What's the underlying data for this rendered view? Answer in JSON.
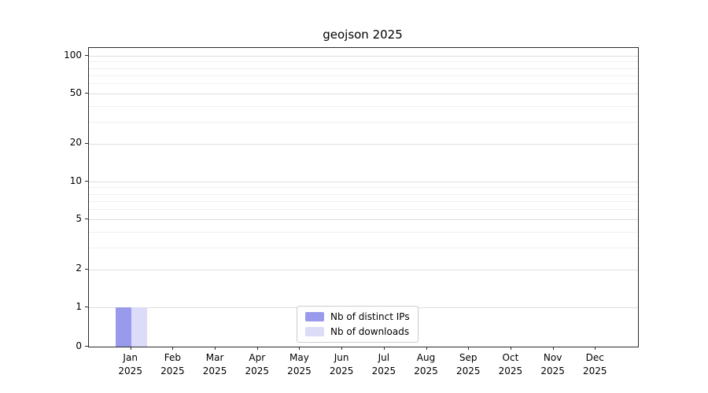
{
  "title": "geojson 2025",
  "chart_data": {
    "type": "bar",
    "title": "geojson 2025",
    "categories": [
      "Jan",
      "Feb",
      "Mar",
      "Apr",
      "May",
      "Jun",
      "Jul",
      "Aug",
      "Sep",
      "Oct",
      "Nov",
      "Dec"
    ],
    "year_label": "2025",
    "series": [
      {
        "name": "Nb of distinct IPs",
        "color": "#9a9aec",
        "values": [
          1,
          0,
          0,
          0,
          0,
          0,
          0,
          0,
          0,
          0,
          0,
          0
        ]
      },
      {
        "name": "Nb of downloads",
        "color": "#dddcf8",
        "values": [
          1,
          0,
          0,
          0,
          0,
          0,
          0,
          0,
          0,
          0,
          0,
          0
        ]
      }
    ],
    "xlabel": "",
    "ylabel": "",
    "yscale": "symlog",
    "ylim": [
      0,
      100
    ],
    "yticks": [
      0,
      1,
      2,
      5,
      10,
      20,
      50,
      100
    ],
    "minor_yticks": [
      3,
      4,
      6,
      7,
      8,
      9,
      30,
      40,
      60,
      70,
      80,
      90
    ],
    "grid": true,
    "legend_position": "lower center"
  }
}
